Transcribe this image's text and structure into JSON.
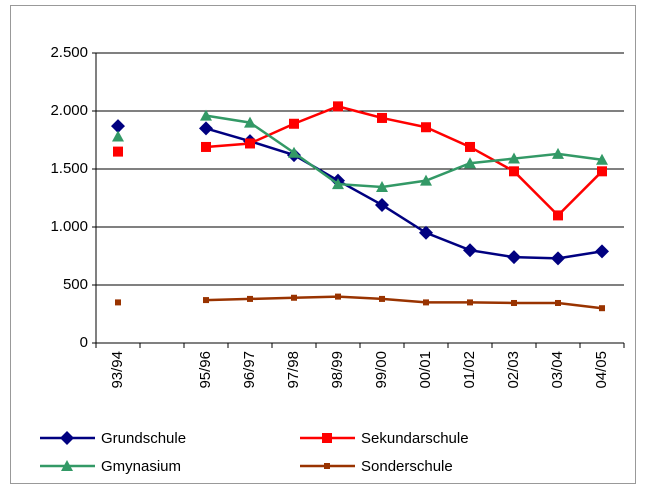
{
  "chart_data": {
    "type": "line",
    "categories": [
      "93/94",
      null,
      "95/96",
      "96/97",
      "97/98",
      "98/99",
      "99/00",
      "00/01",
      "01/02",
      "02/03",
      "03/04",
      "04/05"
    ],
    "series": [
      {
        "name": "Grundschule",
        "color": "#000080",
        "marker": "diamond",
        "values": [
          1870,
          null,
          1850,
          1740,
          1620,
          1400,
          1190,
          950,
          800,
          740,
          730,
          790
        ]
      },
      {
        "name": "Sekundarschule",
        "color": "#ff0000",
        "marker": "square",
        "values": [
          1650,
          null,
          1690,
          1720,
          1890,
          2040,
          1940,
          1860,
          1690,
          1480,
          1100,
          1480
        ]
      },
      {
        "name": "Gmynasium",
        "color": "#339966",
        "marker": "triangle",
        "values": [
          1780,
          null,
          1960,
          1900,
          1640,
          1370,
          1345,
          1400,
          1550,
          1590,
          1630,
          1580
        ]
      },
      {
        "name": "Sonderschule",
        "color": "#993300",
        "marker": "small-square",
        "values": [
          350,
          null,
          370,
          380,
          390,
          400,
          380,
          350,
          350,
          345,
          345,
          300
        ]
      }
    ],
    "ylim": [
      0,
      2500
    ],
    "yticks": [
      0,
      500,
      {
        "value": 1000,
        "label": "1.000"
      },
      {
        "value": 1500,
        "label": "1.500"
      },
      {
        "value": 2000,
        "label": "2.000"
      },
      {
        "value": 2500,
        "label": "2.500"
      }
    ],
    "grid": true,
    "legend": "bottom"
  }
}
